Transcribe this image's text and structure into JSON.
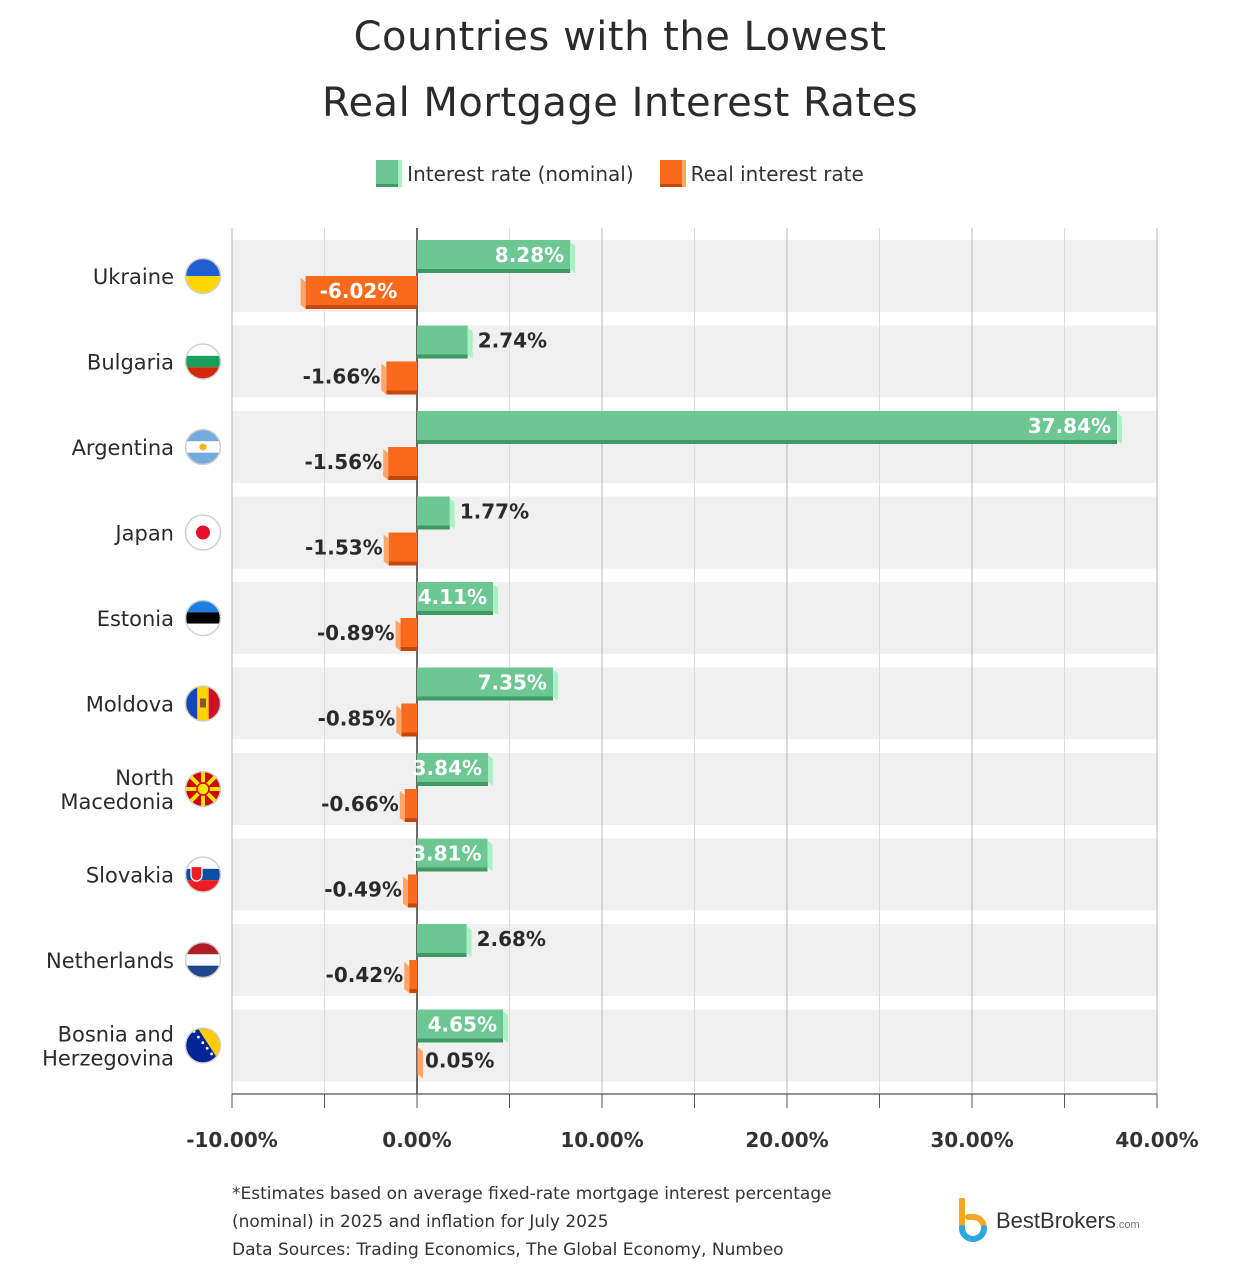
{
  "title_line1": "Countries with the Lowest",
  "title_line2": "Real Mortgage Interest Rates",
  "legend": {
    "nominal": "Interest rate (nominal)",
    "real": "Real interest rate"
  },
  "colors": {
    "nominal": "#6cc793",
    "nominal_dark": "#3e9a63",
    "nominal_light": "#a9f0c3",
    "real": "#f96a1d",
    "real_dark": "#c4470b",
    "real_light": "#ffa568",
    "band": "#f0f0f0"
  },
  "footnote": {
    "line1": "*Estimates based on average fixed-rate mortgage interest percentage",
    "line2": "(nominal) in 2025 and inflation for July 2025",
    "line3": "Data Sources: Trading Economics, The Global Economy, Numbeo"
  },
  "logo": {
    "text": "BestBrokers",
    "suffix": ".com"
  },
  "chart_data": {
    "type": "bar",
    "orientation": "horizontal",
    "categories": [
      "Ukraine",
      "Bulgaria",
      "Argentina",
      "Japan",
      "Estonia",
      "Moldova",
      "North Macedonia",
      "Slovakia",
      "Netherlands",
      "Bosnia and Herzegovina"
    ],
    "category_lines": [
      [
        "Ukraine"
      ],
      [
        "Bulgaria"
      ],
      [
        "Argentina"
      ],
      [
        "Japan"
      ],
      [
        "Estonia"
      ],
      [
        "Moldova"
      ],
      [
        "North",
        "Macedonia"
      ],
      [
        "Slovakia"
      ],
      [
        "Netherlands"
      ],
      [
        "Bosnia and",
        "Herzegovina"
      ]
    ],
    "flags": [
      "ukraine-flag-icon",
      "bulgaria-flag-icon",
      "argentina-flag-icon",
      "japan-flag-icon",
      "estonia-flag-icon",
      "moldova-flag-icon",
      "north-macedonia-flag-icon",
      "slovakia-flag-icon",
      "netherlands-flag-icon",
      "bosnia-flag-icon"
    ],
    "series": [
      {
        "name": "Interest rate (nominal)",
        "values": [
          8.28,
          2.74,
          37.84,
          1.77,
          4.11,
          7.35,
          3.84,
          3.81,
          2.68,
          4.65
        ],
        "labels": [
          "8.28%",
          "2.74%",
          "37.84%",
          "1.77%",
          "4.11%",
          "7.35%",
          "3.84%",
          "3.81%",
          "2.68%",
          "4.65%"
        ]
      },
      {
        "name": "Real interest rate",
        "values": [
          -6.02,
          -1.66,
          -1.56,
          -1.53,
          -0.89,
          -0.85,
          -0.66,
          -0.49,
          -0.42,
          0.05
        ],
        "labels": [
          "-6.02%",
          "-1.66%",
          "-1.56%",
          "-1.53%",
          "-0.89%",
          "-0.85%",
          "-0.66%",
          "-0.49%",
          "-0.42%",
          "0.05%"
        ]
      }
    ],
    "xlim": [
      -10,
      40
    ],
    "xticks": [
      -10,
      0,
      10,
      20,
      30,
      40
    ],
    "xtick_labels": [
      "-10.00%",
      "0.00%",
      "10.00%",
      "20.00%",
      "30.00%",
      "40.00%"
    ],
    "minor_grid_step": 5,
    "grid": true,
    "legend_position": "top"
  }
}
